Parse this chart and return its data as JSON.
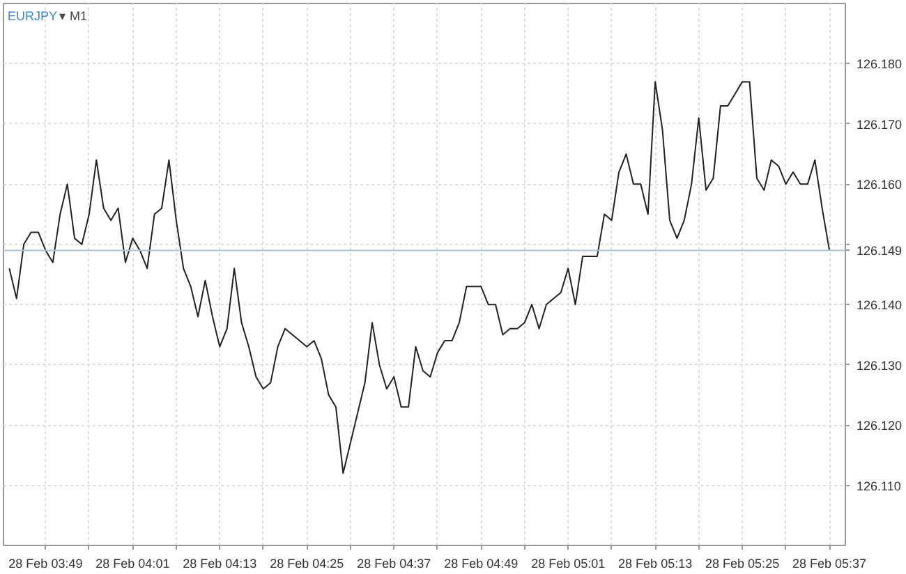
{
  "chart_data": {
    "type": "line",
    "title": "EURJPY",
    "subtitle": "▾ M1",
    "categories": [
      null,
      null,
      null,
      null,
      null,
      "28 Feb 03:49",
      null,
      null,
      null,
      null,
      null,
      null,
      null,
      null,
      null,
      null,
      null,
      "28 Feb 04:01",
      null,
      null,
      null,
      null,
      null,
      null,
      null,
      null,
      null,
      null,
      null,
      "28 Feb 04:13",
      null,
      null,
      null,
      null,
      null,
      null,
      null,
      null,
      null,
      null,
      null,
      "28 Feb 04:25",
      null,
      null,
      null,
      null,
      null,
      null,
      null,
      null,
      null,
      null,
      null,
      "28 Feb 04:37",
      null,
      null,
      null,
      null,
      null,
      null,
      null,
      null,
      null,
      null,
      null,
      "28 Feb 04:49",
      null,
      null,
      null,
      null,
      null,
      null,
      null,
      null,
      null,
      null,
      null,
      "28 Feb 05:01",
      null,
      null,
      null,
      null,
      null,
      null,
      null,
      null,
      null,
      null,
      null,
      "28 Feb 05:13",
      null,
      null,
      null,
      null,
      null,
      null,
      null,
      null,
      null,
      null,
      null,
      "28 Feb 05:25",
      null,
      null,
      null,
      null,
      null,
      null,
      null,
      null,
      null,
      null,
      null,
      "28 Feb 05:37"
    ],
    "series": [
      {
        "color": "#222222",
        "values": [
          126.146,
          126.141,
          126.15,
          126.152,
          126.152,
          126.149,
          126.147,
          126.155,
          126.16,
          126.151,
          126.15,
          126.155,
          126.164,
          126.156,
          126.154,
          126.156,
          126.147,
          126.151,
          126.149,
          126.146,
          126.155,
          126.156,
          126.164,
          126.154,
          126.146,
          126.143,
          126.138,
          126.144,
          126.138,
          126.133,
          126.136,
          126.146,
          126.137,
          126.133,
          126.128,
          126.126,
          126.127,
          126.133,
          126.136,
          126.135,
          126.134,
          126.133,
          126.134,
          126.131,
          126.125,
          126.123,
          126.112,
          126.117,
          126.122,
          126.127,
          126.137,
          126.13,
          126.126,
          126.128,
          126.123,
          126.123,
          126.133,
          126.129,
          126.128,
          126.132,
          126.134,
          126.134,
          126.137,
          126.143,
          126.143,
          126.143,
          126.14,
          126.14,
          126.135,
          126.136,
          126.136,
          126.137,
          126.14,
          126.136,
          126.14,
          126.141,
          126.142,
          126.146,
          126.14,
          126.148,
          126.148,
          126.148,
          126.155,
          126.154,
          126.162,
          126.165,
          126.16,
          126.16,
          126.155,
          126.177,
          126.169,
          126.154,
          126.151,
          126.154,
          126.16,
          126.171,
          126.159,
          126.161,
          126.173,
          126.173,
          126.175,
          126.177,
          126.177,
          126.161,
          126.159,
          126.164,
          126.163,
          126.16,
          126.162,
          126.16,
          126.16,
          126.164,
          126.156,
          126.149
        ]
      }
    ],
    "ylim": [
      126.1,
      126.19
    ],
    "yticks": [
      {
        "value": 126.11,
        "label": "126.110"
      },
      {
        "value": 126.12,
        "label": "126.120"
      },
      {
        "value": 126.13,
        "label": "126.130"
      },
      {
        "value": 126.14,
        "label": "126.140"
      },
      {
        "value": 126.15,
        "label": null
      },
      {
        "value": 126.16,
        "label": "126.160"
      },
      {
        "value": 126.17,
        "label": "126.170"
      },
      {
        "value": 126.18,
        "label": "126.180"
      }
    ],
    "ref_lines": [
      {
        "axis": "y",
        "value": 126.149,
        "label": "126.149",
        "color": "#a9c4d6"
      }
    ],
    "grid": true
  }
}
